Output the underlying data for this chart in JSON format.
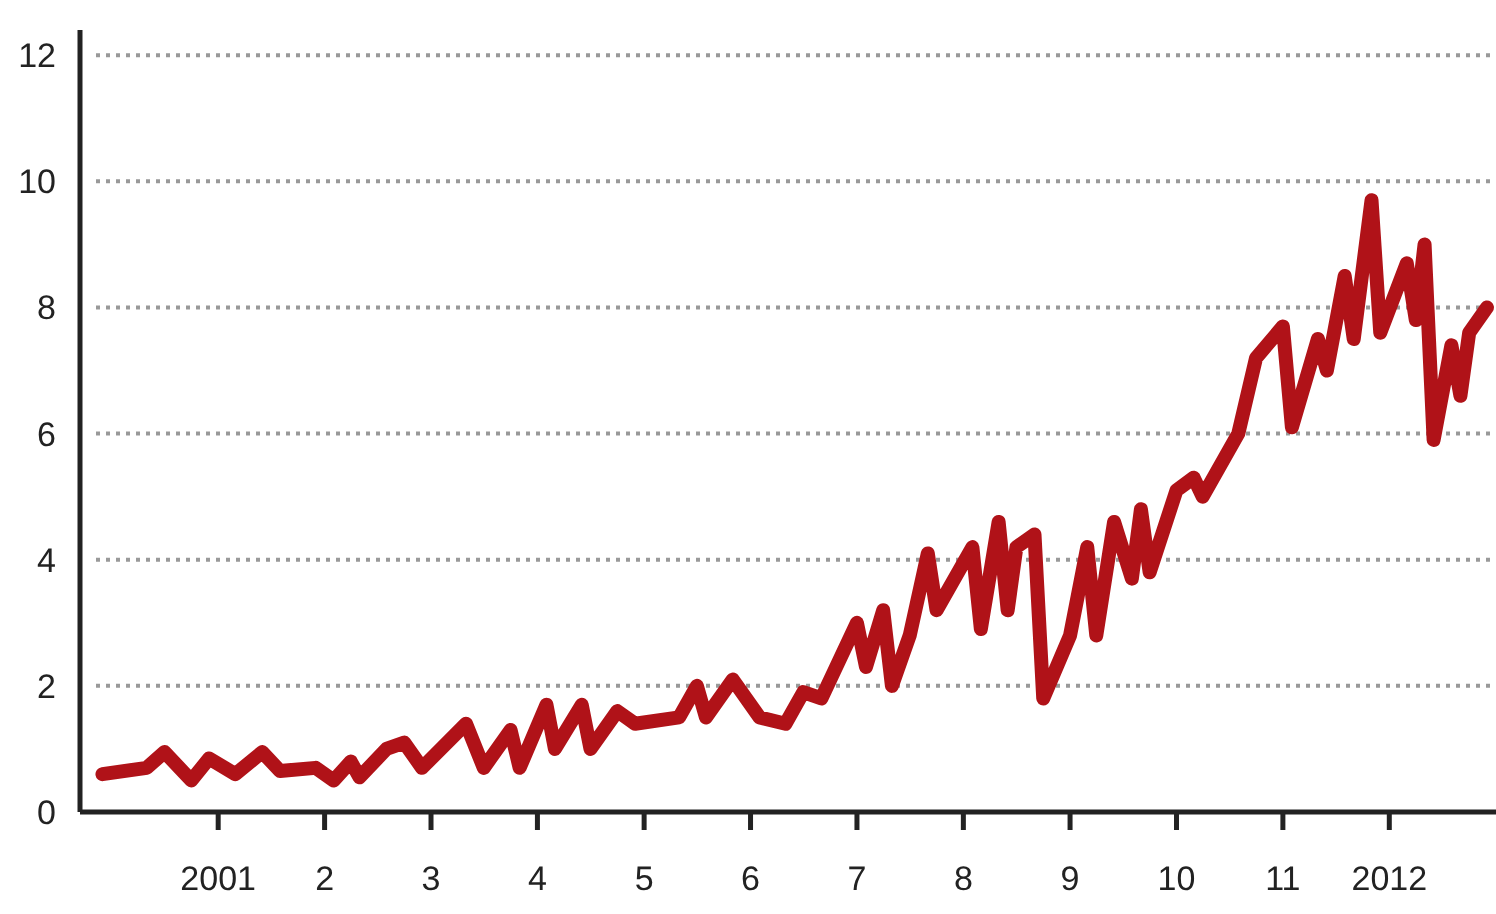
{
  "chart_data": {
    "type": "line",
    "x": [
      "1999-12",
      "2000-05",
      "2000-07",
      "2000-10",
      "2000-12",
      "2001-03",
      "2001-06",
      "2001-08",
      "2001-12",
      "2002-02",
      "2002-04",
      "2002-05",
      "2002-08",
      "2002-10",
      "2002-12",
      "2003-05",
      "2003-07",
      "2003-10",
      "2003-11",
      "2004-02",
      "2004-03",
      "2004-06",
      "2004-07",
      "2004-10",
      "2004-12",
      "2005-05",
      "2005-07",
      "2005-08",
      "2005-11",
      "2006-02",
      "2006-05",
      "2006-07",
      "2006-09",
      "2007-01",
      "2007-02",
      "2007-04",
      "2007-05",
      "2007-07",
      "2007-09",
      "2007-10",
      "2008-02",
      "2008-03",
      "2008-05",
      "2008-06",
      "2008-07",
      "2008-09",
      "2008-10",
      "2009-01",
      "2009-03",
      "2009-04",
      "2009-06",
      "2009-08",
      "2009-09",
      "2009-10",
      "2010-01",
      "2010-03",
      "2010-04",
      "2010-08",
      "2010-10",
      "2011-01",
      "2011-02",
      "2011-05",
      "2011-06",
      "2011-08",
      "2011-09",
      "2011-11",
      "2011-12",
      "2012-03",
      "2012-04",
      "2012-05",
      "2012-06",
      "2012-08",
      "2012-09",
      "2012-10",
      "2012-12"
    ],
    "series": [
      {
        "color": "#b01218",
        "values": [
          0.6,
          0.7,
          0.95,
          0.5,
          0.85,
          0.6,
          0.95,
          0.65,
          0.7,
          0.5,
          0.8,
          0.55,
          1.0,
          1.1,
          0.7,
          1.4,
          0.7,
          1.3,
          0.7,
          1.7,
          1.0,
          1.7,
          1.0,
          1.6,
          1.4,
          1.5,
          2.0,
          1.5,
          2.1,
          1.5,
          1.4,
          1.9,
          1.8,
          3.0,
          2.3,
          3.2,
          2.0,
          2.8,
          4.1,
          3.2,
          4.2,
          2.9,
          4.6,
          3.2,
          4.2,
          4.4,
          1.8,
          2.8,
          4.2,
          2.8,
          4.6,
          3.7,
          4.8,
          3.8,
          5.1,
          5.3,
          5.0,
          6.0,
          7.2,
          7.7,
          6.1,
          7.5,
          7.0,
          8.5,
          7.5,
          9.7,
          7.6,
          8.7,
          7.8,
          9.0,
          5.9,
          7.4,
          6.6,
          7.6,
          8.0
        ]
      }
    ],
    "xlim": [
      "1999-09-15",
      "2013-01-01"
    ],
    "xticks": [
      {
        "value": "2001-01-01",
        "label": "2001"
      },
      {
        "value": "2002-01-01",
        "label": "2"
      },
      {
        "value": "2003-01-01",
        "label": "3"
      },
      {
        "value": "2004-01-01",
        "label": "4"
      },
      {
        "value": "2005-01-01",
        "label": "5"
      },
      {
        "value": "2006-01-01",
        "label": "6"
      },
      {
        "value": "2007-01-01",
        "label": "7"
      },
      {
        "value": "2008-01-01",
        "label": "8"
      },
      {
        "value": "2009-01-01",
        "label": "9"
      },
      {
        "value": "2010-01-01",
        "label": "10"
      },
      {
        "value": "2011-01-01",
        "label": "11"
      },
      {
        "value": "2012-01-01",
        "label": "2012"
      }
    ],
    "ylim": [
      0,
      12.4
    ],
    "yticks": [
      0,
      2,
      4,
      6,
      8,
      10,
      12
    ],
    "grid": "y",
    "marker": "none",
    "line_style": "solid"
  }
}
